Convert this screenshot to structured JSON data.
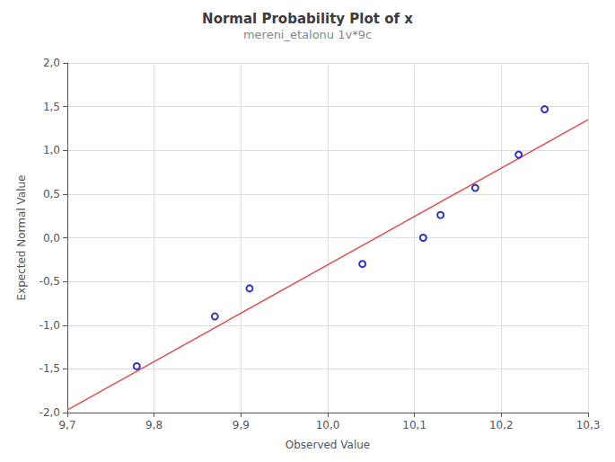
{
  "chart_data": {
    "type": "scatter",
    "title": "Normal Probability Plot of x",
    "subtitle": "mereni_etalonu 1v*9c",
    "x_label": "Observed Value",
    "y_label": "Expected Normal Value",
    "xlim": [
      9.7,
      10.3
    ],
    "ylim": [
      -2.0,
      2.0
    ],
    "xticks": [
      {
        "value": 9.7,
        "label": "9,7"
      },
      {
        "value": 9.8,
        "label": "9,8"
      },
      {
        "value": 9.9,
        "label": "9,9"
      },
      {
        "value": 10.0,
        "label": "10,0"
      },
      {
        "value": 10.1,
        "label": "10,1"
      },
      {
        "value": 10.2,
        "label": "10,2"
      },
      {
        "value": 10.3,
        "label": "10,3"
      }
    ],
    "yticks": [
      {
        "value": -2.0,
        "label": "-2,0"
      },
      {
        "value": -1.5,
        "label": "-1,5"
      },
      {
        "value": -1.0,
        "label": "-1,0"
      },
      {
        "value": -0.5,
        "label": "-0,5"
      },
      {
        "value": 0.0,
        "label": "0,0"
      },
      {
        "value": 0.5,
        "label": "0,5"
      },
      {
        "value": 1.0,
        "label": "1,0"
      },
      {
        "value": 1.5,
        "label": "1,5"
      },
      {
        "value": 2.0,
        "label": "2,0"
      }
    ],
    "grid": true,
    "series": [
      {
        "type": "line",
        "color": "#E05050",
        "line_style": "solid",
        "x": [
          9.7,
          10.3
        ],
        "values": [
          -1.97,
          1.35
        ]
      },
      {
        "type": "scatter",
        "color": "#0000BB",
        "marker": "circle",
        "x": [
          9.78,
          9.87,
          9.91,
          10.04,
          10.11,
          10.13,
          10.17,
          10.22,
          10.25
        ],
        "values": [
          -1.47,
          -0.9,
          -0.58,
          -0.3,
          0.0,
          0.26,
          0.57,
          0.95,
          1.47
        ]
      }
    ]
  }
}
